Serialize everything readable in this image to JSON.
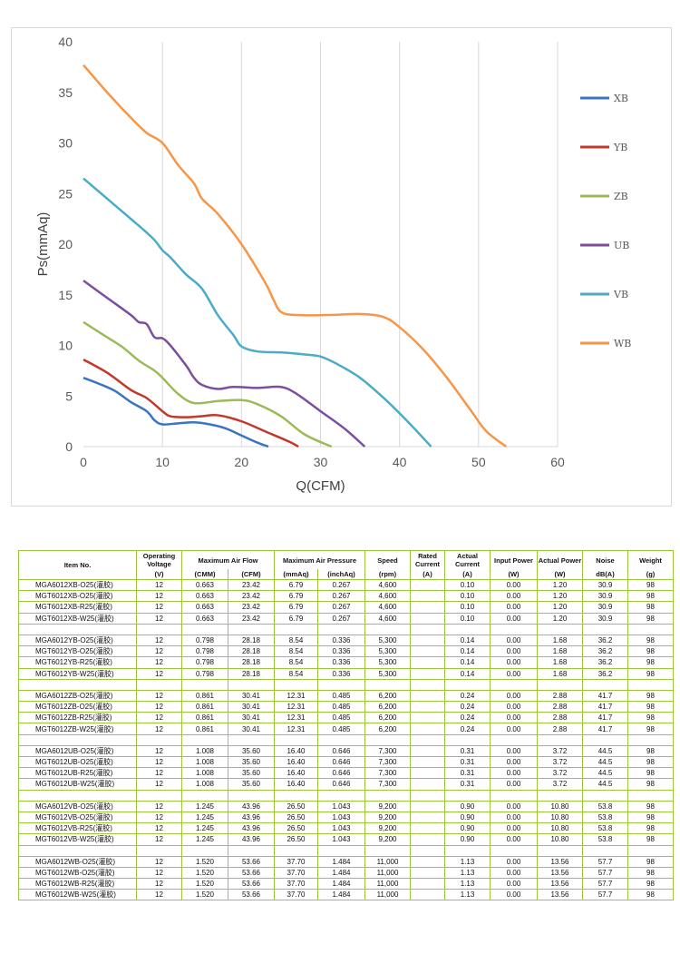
{
  "chart_data": {
    "type": "line",
    "xlabel": "Q(CFM)",
    "ylabel": "Ps(mmAq)",
    "xlim": [
      0,
      60
    ],
    "ylim": [
      0,
      40
    ],
    "xticks": [
      0,
      10,
      20,
      30,
      40,
      50,
      60
    ],
    "yticks": [
      0,
      5,
      10,
      15,
      20,
      25,
      30,
      35,
      40
    ],
    "grid": "vertical",
    "legend": "right",
    "series": [
      {
        "name": "XB",
        "color": "#3a75c3",
        "points": [
          [
            0,
            6.8
          ],
          [
            2,
            6.2
          ],
          [
            4,
            5.5
          ],
          [
            6,
            4.4
          ],
          [
            8,
            3.5
          ],
          [
            9,
            2.6
          ],
          [
            10,
            2.2
          ],
          [
            12,
            2.3
          ],
          [
            14,
            2.4
          ],
          [
            16,
            2.2
          ],
          [
            18,
            1.8
          ],
          [
            20,
            1.1
          ],
          [
            22,
            0.4
          ],
          [
            23.4,
            0
          ]
        ]
      },
      {
        "name": "YB",
        "color": "#c0392b",
        "points": [
          [
            0,
            8.6
          ],
          [
            3,
            7.3
          ],
          [
            6,
            5.6
          ],
          [
            8,
            4.8
          ],
          [
            10,
            3.5
          ],
          [
            11,
            3.0
          ],
          [
            13,
            2.9
          ],
          [
            15,
            3.0
          ],
          [
            17,
            3.1
          ],
          [
            20,
            2.5
          ],
          [
            23,
            1.5
          ],
          [
            26,
            0.5
          ],
          [
            27.2,
            0
          ]
        ]
      },
      {
        "name": "ZB",
        "color": "#9bbb59",
        "points": [
          [
            0,
            12.3
          ],
          [
            3,
            10.8
          ],
          [
            5,
            9.8
          ],
          [
            7,
            8.5
          ],
          [
            9,
            7.5
          ],
          [
            10,
            6.8
          ],
          [
            12,
            5.2
          ],
          [
            14,
            4.3
          ],
          [
            17,
            4.5
          ],
          [
            20,
            4.6
          ],
          [
            22,
            4.2
          ],
          [
            25,
            3.0
          ],
          [
            28,
            1.2
          ],
          [
            31.4,
            0
          ]
        ]
      },
      {
        "name": "UB",
        "color": "#7b4f9d",
        "points": [
          [
            0,
            16.4
          ],
          [
            3,
            14.7
          ],
          [
            6,
            13.0
          ],
          [
            7,
            12.3
          ],
          [
            8,
            12.1
          ],
          [
            9,
            10.8
          ],
          [
            10,
            10.7
          ],
          [
            11,
            10.0
          ],
          [
            13,
            8.0
          ],
          [
            14,
            6.8
          ],
          [
            15,
            6.1
          ],
          [
            17,
            5.7
          ],
          [
            19,
            5.9
          ],
          [
            22,
            5.8
          ],
          [
            25,
            5.9
          ],
          [
            27,
            5.2
          ],
          [
            30,
            3.5
          ],
          [
            33,
            1.8
          ],
          [
            35.6,
            0
          ]
        ]
      },
      {
        "name": "VB",
        "color": "#4bacc6",
        "points": [
          [
            0,
            26.5
          ],
          [
            3,
            24.5
          ],
          [
            6,
            22.5
          ],
          [
            7.5,
            21.5
          ],
          [
            9,
            20.4
          ],
          [
            10,
            19.4
          ],
          [
            11,
            18.7
          ],
          [
            13,
            17.0
          ],
          [
            15,
            15.6
          ],
          [
            17,
            13
          ],
          [
            19,
            11
          ],
          [
            20,
            9.9
          ],
          [
            22,
            9.4
          ],
          [
            25,
            9.3
          ],
          [
            28,
            9.1
          ],
          [
            30,
            8.9
          ],
          [
            32,
            8.2
          ],
          [
            35,
            6.8
          ],
          [
            38,
            4.8
          ],
          [
            41,
            2.5
          ],
          [
            44,
            0
          ]
        ]
      },
      {
        "name": "WB",
        "color": "#f79646",
        "points": [
          [
            0,
            37.7
          ],
          [
            3,
            35
          ],
          [
            6,
            32.5
          ],
          [
            8,
            31
          ],
          [
            10,
            30
          ],
          [
            12,
            27.8
          ],
          [
            14,
            26
          ],
          [
            15,
            24.5
          ],
          [
            17,
            23
          ],
          [
            20,
            20
          ],
          [
            23,
            16.2
          ],
          [
            24,
            14.6
          ],
          [
            25,
            13.3
          ],
          [
            27,
            13
          ],
          [
            31,
            13
          ],
          [
            35,
            13.1
          ],
          [
            38,
            12.8
          ],
          [
            40,
            11.8
          ],
          [
            43,
            9.6
          ],
          [
            46,
            6.8
          ],
          [
            49,
            3.6
          ],
          [
            51,
            1.5
          ],
          [
            53.5,
            0
          ]
        ]
      }
    ]
  },
  "table": {
    "header": [
      "Item No.",
      "Operating Voltage",
      "Maximum Air Flow",
      "Maximum Air Pressure",
      "Speed",
      "Rated Current",
      "Actual Current",
      "Input Power",
      "Actual Power",
      "Noise",
      "Weight"
    ],
    "units": [
      "",
      "(V)",
      "(CMM)",
      "(CFM)",
      "(mmAq)",
      "(inchAq)",
      "(rpm)",
      "(A)",
      "(A)",
      "(W)",
      "(W)",
      "dB(A)",
      "(g)"
    ],
    "groups": [
      {
        "rows": [
          [
            "MGA6012XB-O25(灌胶)",
            "12",
            "0.663",
            "23.42",
            "6.79",
            "0.267",
            "4,600",
            "",
            "0.10",
            "0.00",
            "1.20",
            "30.9",
            "98"
          ],
          [
            "MGT6012XB-O25(灌胶)",
            "12",
            "0.663",
            "23.42",
            "6.79",
            "0.267",
            "4,600",
            "",
            "0.10",
            "0.00",
            "1.20",
            "30.9",
            "98"
          ],
          [
            "MGT6012XB-R25(灌胶)",
            "12",
            "0.663",
            "23.42",
            "6.79",
            "0.267",
            "4,600",
            "",
            "0.10",
            "0.00",
            "1.20",
            "30.9",
            "98"
          ],
          [
            "MGT6012XB-W25(灌胶)",
            "12",
            "0.663",
            "23.42",
            "6.79",
            "0.267",
            "4,600",
            "",
            "0.10",
            "0.00",
            "1.20",
            "30.9",
            "98"
          ]
        ]
      },
      {
        "rows": [
          [
            "MGA6012YB-O25(灌胶)",
            "12",
            "0.798",
            "28.18",
            "8.54",
            "0.336",
            "5,300",
            "",
            "0.14",
            "0.00",
            "1.68",
            "36.2",
            "98"
          ],
          [
            "MGT6012YB-O25(灌胶)",
            "12",
            "0.798",
            "28.18",
            "8.54",
            "0.336",
            "5,300",
            "",
            "0.14",
            "0.00",
            "1.68",
            "36.2",
            "98"
          ],
          [
            "MGT6012YB-R25(灌胶)",
            "12",
            "0.798",
            "28.18",
            "8.54",
            "0.336",
            "5,300",
            "",
            "0.14",
            "0.00",
            "1.68",
            "36.2",
            "98"
          ],
          [
            "MGT6012YB-W25(灌胶)",
            "12",
            "0.798",
            "28.18",
            "8.54",
            "0.336",
            "5,300",
            "",
            "0.14",
            "0.00",
            "1.68",
            "36.2",
            "98"
          ]
        ]
      },
      {
        "rows": [
          [
            "MGA6012ZB-O25(灌胶)",
            "12",
            "0.861",
            "30.41",
            "12.31",
            "0.485",
            "6,200",
            "",
            "0.24",
            "0.00",
            "2.88",
            "41.7",
            "98"
          ],
          [
            "MGT6012ZB-O25(灌胶)",
            "12",
            "0.861",
            "30.41",
            "12.31",
            "0.485",
            "6,200",
            "",
            "0.24",
            "0.00",
            "2.88",
            "41.7",
            "98"
          ],
          [
            "MGT6012ZB-R25(灌胶)",
            "12",
            "0.861",
            "30.41",
            "12.31",
            "0.485",
            "6,200",
            "",
            "0.24",
            "0.00",
            "2.88",
            "41.7",
            "98"
          ],
          [
            "MGT6012ZB-W25(灌胶)",
            "12",
            "0.861",
            "30.41",
            "12.31",
            "0.485",
            "6,200",
            "",
            "0.24",
            "0.00",
            "2.88",
            "41.7",
            "98"
          ]
        ]
      },
      {
        "rows": [
          [
            "MGA6012UB-O25(灌胶)",
            "12",
            "1.008",
            "35.60",
            "16.40",
            "0.646",
            "7,300",
            "",
            "0.31",
            "0.00",
            "3.72",
            "44.5",
            "98"
          ],
          [
            "MGT6012UB-O25(灌胶)",
            "12",
            "1.008",
            "35.60",
            "16.40",
            "0.646",
            "7,300",
            "",
            "0.31",
            "0.00",
            "3.72",
            "44.5",
            "98"
          ],
          [
            "MGT6012UB-R25(灌胶)",
            "12",
            "1.008",
            "35.60",
            "16.40",
            "0.646",
            "7,300",
            "",
            "0.31",
            "0.00",
            "3.72",
            "44.5",
            "98"
          ],
          [
            "MGT6012UB-W25(灌胶)",
            "12",
            "1.008",
            "35.60",
            "16.40",
            "0.646",
            "7,300",
            "",
            "0.31",
            "0.00",
            "3.72",
            "44.5",
            "98"
          ]
        ]
      },
      {
        "rows": [
          [
            "MGA6012VB-O25(灌胶)",
            "12",
            "1.245",
            "43.96",
            "26.50",
            "1.043",
            "9,200",
            "",
            "0.90",
            "0.00",
            "10.80",
            "53.8",
            "98"
          ],
          [
            "MGT6012VB-O25(灌胶)",
            "12",
            "1.245",
            "43.96",
            "26.50",
            "1.043",
            "9,200",
            "",
            "0.90",
            "0.00",
            "10.80",
            "53.8",
            "98"
          ],
          [
            "MGT6012VB-R25(灌胶)",
            "12",
            "1.245",
            "43.96",
            "26.50",
            "1.043",
            "9,200",
            "",
            "0.90",
            "0.00",
            "10.80",
            "53.8",
            "98"
          ],
          [
            "MGT6012VB-W25(灌胶)",
            "12",
            "1.245",
            "43.96",
            "26.50",
            "1.043",
            "9,200",
            "",
            "0.90",
            "0.00",
            "10.80",
            "53.8",
            "98"
          ]
        ]
      },
      {
        "rows": [
          [
            "MGA6012WB-O25(灌胶)",
            "12",
            "1.520",
            "53.66",
            "37.70",
            "1.484",
            "11,000",
            "",
            "1.13",
            "0.00",
            "13.56",
            "57.7",
            "98"
          ],
          [
            "MGT6012WB-O25(灌胶)",
            "12",
            "1.520",
            "53.66",
            "37.70",
            "1.484",
            "11,000",
            "",
            "1.13",
            "0.00",
            "13.56",
            "57.7",
            "98"
          ],
          [
            "MGT6012WB-R25(灌胶)",
            "12",
            "1.520",
            "53.66",
            "37.70",
            "1.484",
            "11,000",
            "",
            "1.13",
            "0.00",
            "13.56",
            "57.7",
            "98"
          ],
          [
            "MGT6012WB-W25(灌胶)",
            "12",
            "1.520",
            "53.66",
            "37.70",
            "1.484",
            "11,000",
            "",
            "1.13",
            "0.00",
            "13.56",
            "57.7",
            "98"
          ]
        ]
      }
    ]
  }
}
